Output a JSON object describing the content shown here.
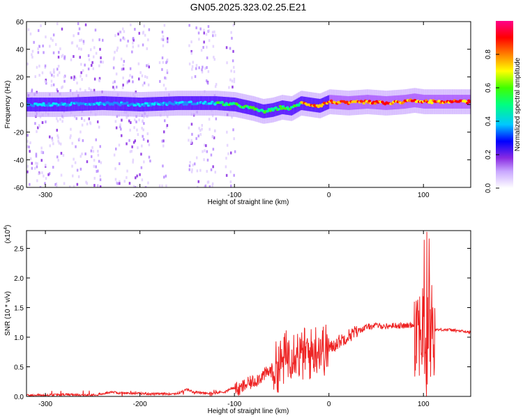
{
  "figure_title": "GN05.2025.323.02.25.E21",
  "chart_data": [
    {
      "type": "heatmap",
      "name": "spectrogram",
      "title": "GN05.2025.323.02.25.E21",
      "xlabel": "Height of straight line (km)",
      "ylabel": "Frequency (Hz)",
      "xlim": [
        -320,
        150
      ],
      "ylim": [
        -60,
        60
      ],
      "xticks": [
        -300,
        -200,
        -100,
        0,
        100
      ],
      "yticks": [
        60,
        40,
        20,
        0,
        -20,
        -40,
        -60
      ],
      "colorbar": {
        "label": "Normalized spectral amplitude",
        "range": [
          0,
          1
        ],
        "ticks": [
          "0.0",
          "0.2",
          "0.4",
          "0.6",
          "0.8"
        ],
        "colors": [
          "#ffffff",
          "#c9a7ff",
          "#8a2be2",
          "#0000ff",
          "#00ffff",
          "#00ff00",
          "#ffff00",
          "#ff8000",
          "#ff0000",
          "#ff00aa"
        ]
      },
      "ridge": {
        "x": [
          -320,
          -280,
          -240,
          -200,
          -160,
          -120,
          -100,
          -80,
          -70,
          -60,
          -50,
          -40,
          -30,
          -20,
          -10,
          0,
          20,
          40,
          60,
          80,
          90,
          100,
          120,
          150
        ],
        "y": [
          0,
          0,
          1,
          0,
          1,
          1,
          0,
          -3,
          -5,
          -4,
          -2,
          -3,
          1,
          0,
          -1,
          2,
          1,
          2,
          1,
          2,
          3,
          2,
          2,
          2
        ]
      }
    },
    {
      "type": "line",
      "name": "snr",
      "xlabel": "Height of straight line (km)",
      "ylabel": "SNR (10 * v/v)",
      "yscale_label": "(x10",
      "yscale_exp": "4",
      "xlim": [
        -320,
        150
      ],
      "ylim": [
        0,
        2.8
      ],
      "xticks": [
        -300,
        -200,
        -100,
        0,
        100
      ],
      "yticks": [
        "0.0",
        "0.5",
        "1.0",
        "1.5",
        "2.0",
        "2.5"
      ],
      "series": [
        {
          "name": "SNR",
          "color": "#ee2222",
          "x": [
            -320,
            -300,
            -280,
            -260,
            -240,
            -230,
            -225,
            -200,
            -180,
            -160,
            -150,
            -145,
            -130,
            -120,
            -110,
            -100,
            -95,
            -90,
            -80,
            -70,
            -60,
            -50,
            -45,
            -40,
            -35,
            -30,
            -25,
            -20,
            -15,
            -10,
            -5,
            0,
            10,
            20,
            30,
            40,
            50,
            60,
            70,
            80,
            90,
            95,
            100,
            103,
            105,
            108,
            110,
            120,
            130,
            140,
            150
          ],
          "values": [
            0.02,
            0.02,
            0.03,
            0.02,
            0.04,
            0.08,
            0.06,
            0.05,
            0.04,
            0.05,
            0.12,
            0.08,
            0.05,
            0.06,
            0.08,
            0.15,
            0.1,
            0.18,
            0.25,
            0.35,
            0.45,
            0.55,
            0.7,
            0.75,
            0.8,
            0.65,
            0.75,
            0.7,
            0.8,
            0.85,
            0.78,
            0.8,
            0.92,
            1.02,
            1.1,
            1.17,
            1.2,
            1.18,
            1.2,
            1.19,
            1.21,
            1.22,
            1.1,
            0.3,
            1.4,
            1.2,
            1.12,
            1.13,
            1.12,
            1.1,
            1.08
          ]
        }
      ]
    }
  ]
}
